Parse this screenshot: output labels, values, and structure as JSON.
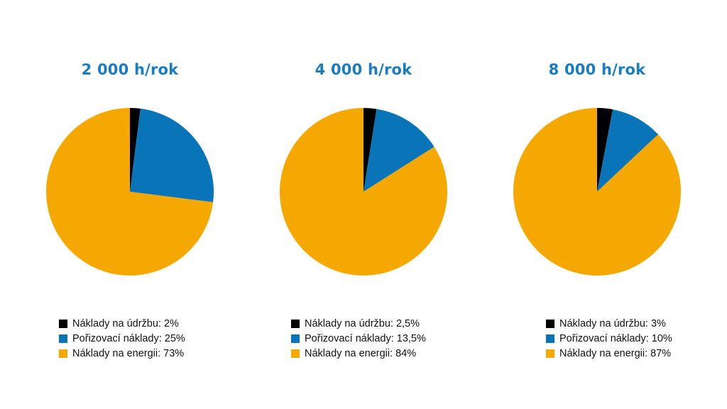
{
  "colors": {
    "maintenance": "#000000",
    "acquisition": "#0a74b9",
    "energy": "#f5a800",
    "title": "#1a7cc0"
  },
  "chart_data": [
    {
      "type": "pie",
      "title": "2 000 h/rok",
      "legend": "bottom",
      "slices": [
        {
          "label": "Náklady na údržbu: 2%",
          "value": 2,
          "color": "#000000"
        },
        {
          "label": "Pořizovací náklady: 25%",
          "value": 25,
          "color": "#0a74b9"
        },
        {
          "label": "Náklady na energii: 73%",
          "value": 73,
          "color": "#f5a800"
        }
      ]
    },
    {
      "type": "pie",
      "title": "4 000 h/rok",
      "legend": "bottom",
      "slices": [
        {
          "label": "Náklady na údržbu: 2,5%",
          "value": 2.5,
          "color": "#000000"
        },
        {
          "label": "Pořizovací náklady: 13,5%",
          "value": 13.5,
          "color": "#0a74b9"
        },
        {
          "label": "Náklady na energii: 84%",
          "value": 84,
          "color": "#f5a800"
        }
      ]
    },
    {
      "type": "pie",
      "title": "8 000 h/rok",
      "legend": "bottom",
      "slices": [
        {
          "label": "Náklady na údržbu: 3%",
          "value": 3,
          "color": "#000000"
        },
        {
          "label": "Pořizovací náklady: 10%",
          "value": 10,
          "color": "#0a74b9"
        },
        {
          "label": "Náklady na energii: 87%",
          "value": 87,
          "color": "#f5a800"
        }
      ]
    }
  ]
}
